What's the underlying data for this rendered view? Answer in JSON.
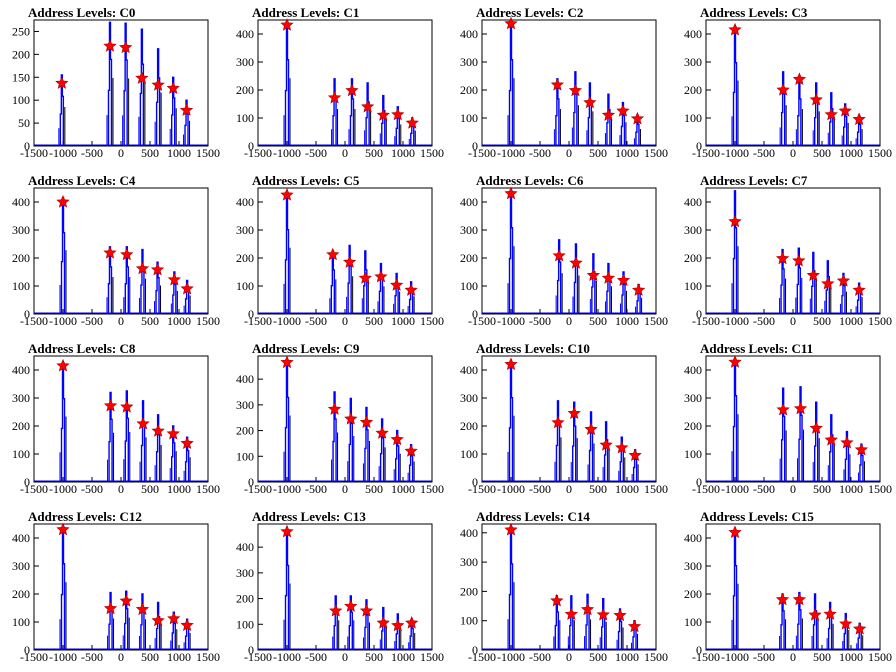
{
  "chart_data": [
    {
      "type": "histogram",
      "title": "Address Levels: C0",
      "ylim": [
        0,
        275
      ],
      "yticks": [
        0,
        50,
        100,
        150,
        200,
        250
      ],
      "xticks": [
        -1500,
        -1000,
        -500,
        0,
        500,
        1000,
        1500
      ],
      "peaks": [
        {
          "x": -1020,
          "y": 137,
          "h": 155
        },
        {
          "x": -190,
          "y": 218,
          "h": 270
        },
        {
          "x": 80,
          "y": 215,
          "h": 268
        },
        {
          "x": 360,
          "y": 148,
          "h": 255
        },
        {
          "x": 640,
          "y": 133,
          "h": 212
        },
        {
          "x": 900,
          "y": 126,
          "h": 150
        },
        {
          "x": 1130,
          "y": 78,
          "h": 100
        }
      ]
    },
    {
      "type": "histogram",
      "title": "Address Levels: C1",
      "ylim": [
        0,
        450
      ],
      "yticks": [
        0,
        100,
        200,
        300,
        400
      ],
      "xticks": [
        -1500,
        -1000,
        -500,
        0,
        500,
        1000,
        1500
      ],
      "peaks": [
        {
          "x": -1000,
          "y": 432,
          "h": 440
        },
        {
          "x": -180,
          "y": 172,
          "h": 240
        },
        {
          "x": 120,
          "y": 198,
          "h": 240
        },
        {
          "x": 390,
          "y": 140,
          "h": 225
        },
        {
          "x": 660,
          "y": 110,
          "h": 180
        },
        {
          "x": 910,
          "y": 112,
          "h": 140
        },
        {
          "x": 1160,
          "y": 82,
          "h": 100
        }
      ]
    },
    {
      "type": "histogram",
      "title": "Address Levels: C2",
      "ylim": [
        0,
        450
      ],
      "yticks": [
        0,
        100,
        200,
        300,
        400
      ],
      "xticks": [
        -1500,
        -1000,
        -500,
        0,
        500,
        1000,
        1500
      ],
      "peaks": [
        {
          "x": -1000,
          "y": 437,
          "h": 440
        },
        {
          "x": -200,
          "y": 218,
          "h": 240
        },
        {
          "x": 110,
          "y": 198,
          "h": 265
        },
        {
          "x": 360,
          "y": 155,
          "h": 225
        },
        {
          "x": 680,
          "y": 110,
          "h": 185
        },
        {
          "x": 930,
          "y": 125,
          "h": 155
        },
        {
          "x": 1180,
          "y": 97,
          "h": 110
        }
      ]
    },
    {
      "type": "histogram",
      "title": "Address Levels: C3",
      "ylim": [
        0,
        450
      ],
      "yticks": [
        0,
        100,
        200,
        300,
        400
      ],
      "xticks": [
        -1500,
        -1000,
        -500,
        0,
        500,
        1000,
        1500
      ],
      "peaks": [
        {
          "x": -1000,
          "y": 415,
          "h": 425
        },
        {
          "x": -170,
          "y": 200,
          "h": 265
        },
        {
          "x": 110,
          "y": 238,
          "h": 240
        },
        {
          "x": 400,
          "y": 165,
          "h": 225
        },
        {
          "x": 660,
          "y": 112,
          "h": 190
        },
        {
          "x": 900,
          "y": 125,
          "h": 150
        },
        {
          "x": 1140,
          "y": 95,
          "h": 110
        }
      ]
    },
    {
      "type": "histogram",
      "title": "Address Levels: C4",
      "ylim": [
        0,
        450
      ],
      "yticks": [
        0,
        100,
        200,
        300,
        400
      ],
      "xticks": [
        -1500,
        -1000,
        -500,
        0,
        500,
        1000,
        1500
      ],
      "peaks": [
        {
          "x": -1000,
          "y": 400,
          "h": 415
        },
        {
          "x": -190,
          "y": 218,
          "h": 240
        },
        {
          "x": 100,
          "y": 212,
          "h": 240
        },
        {
          "x": 370,
          "y": 162,
          "h": 230
        },
        {
          "x": 630,
          "y": 158,
          "h": 185
        },
        {
          "x": 920,
          "y": 122,
          "h": 150
        },
        {
          "x": 1140,
          "y": 90,
          "h": 120
        }
      ]
    },
    {
      "type": "histogram",
      "title": "Address Levels: C5",
      "ylim": [
        0,
        450
      ],
      "yticks": [
        0,
        100,
        200,
        300,
        400
      ],
      "xticks": [
        -1500,
        -1000,
        -500,
        0,
        500,
        1000,
        1500
      ],
      "peaks": [
        {
          "x": -1000,
          "y": 425,
          "h": 430
        },
        {
          "x": -210,
          "y": 212,
          "h": 225
        },
        {
          "x": 80,
          "y": 185,
          "h": 245
        },
        {
          "x": 350,
          "y": 128,
          "h": 225
        },
        {
          "x": 620,
          "y": 133,
          "h": 180
        },
        {
          "x": 890,
          "y": 103,
          "h": 145
        },
        {
          "x": 1140,
          "y": 85,
          "h": 115
        }
      ]
    },
    {
      "type": "histogram",
      "title": "Address Levels: C6",
      "ylim": [
        0,
        450
      ],
      "yticks": [
        0,
        100,
        200,
        300,
        400
      ],
      "xticks": [
        -1500,
        -1000,
        -500,
        0,
        500,
        1000,
        1500
      ],
      "peaks": [
        {
          "x": -1000,
          "y": 430,
          "h": 440
        },
        {
          "x": -170,
          "y": 208,
          "h": 265
        },
        {
          "x": 120,
          "y": 182,
          "h": 250
        },
        {
          "x": 420,
          "y": 138,
          "h": 215
        },
        {
          "x": 680,
          "y": 128,
          "h": 180
        },
        {
          "x": 940,
          "y": 120,
          "h": 150
        },
        {
          "x": 1200,
          "y": 85,
          "h": 105
        }
      ]
    },
    {
      "type": "histogram",
      "title": "Address Levels: C7",
      "ylim": [
        0,
        450
      ],
      "yticks": [
        0,
        100,
        200,
        300,
        400
      ],
      "xticks": [
        -1500,
        -1000,
        -500,
        0,
        500,
        1000,
        1500
      ],
      "peaks": [
        {
          "x": -1000,
          "y": 330,
          "h": 440
        },
        {
          "x": -180,
          "y": 198,
          "h": 230
        },
        {
          "x": 100,
          "y": 190,
          "h": 235
        },
        {
          "x": 350,
          "y": 138,
          "h": 220
        },
        {
          "x": 600,
          "y": 108,
          "h": 190
        },
        {
          "x": 870,
          "y": 118,
          "h": 145
        },
        {
          "x": 1140,
          "y": 85,
          "h": 110
        }
      ]
    },
    {
      "type": "histogram",
      "title": "Address Levels: C8",
      "ylim": [
        0,
        450
      ],
      "yticks": [
        0,
        100,
        200,
        300,
        400
      ],
      "xticks": [
        -1500,
        -1000,
        -500,
        0,
        500,
        1000,
        1500
      ],
      "peaks": [
        {
          "x": -1000,
          "y": 415,
          "h": 425
        },
        {
          "x": -180,
          "y": 272,
          "h": 320
        },
        {
          "x": 100,
          "y": 268,
          "h": 325
        },
        {
          "x": 380,
          "y": 208,
          "h": 290
        },
        {
          "x": 640,
          "y": 182,
          "h": 240
        },
        {
          "x": 900,
          "y": 172,
          "h": 200
        },
        {
          "x": 1140,
          "y": 138,
          "h": 160
        }
      ]
    },
    {
      "type": "histogram",
      "title": "Address Levels: C9",
      "ylim": [
        0,
        490
      ],
      "yticks": [
        0,
        100,
        200,
        300,
        400
      ],
      "xticks": [
        -1500,
        -1000,
        -500,
        0,
        500,
        1000,
        1500
      ],
      "peaks": [
        {
          "x": -1000,
          "y": 465,
          "h": 470
        },
        {
          "x": -180,
          "y": 283,
          "h": 350
        },
        {
          "x": 100,
          "y": 245,
          "h": 325
        },
        {
          "x": 370,
          "y": 232,
          "h": 290
        },
        {
          "x": 640,
          "y": 190,
          "h": 245
        },
        {
          "x": 900,
          "y": 165,
          "h": 200
        },
        {
          "x": 1140,
          "y": 120,
          "h": 145
        }
      ]
    },
    {
      "type": "histogram",
      "title": "Address Levels: C10",
      "ylim": [
        0,
        450
      ],
      "yticks": [
        0,
        100,
        200,
        300,
        400
      ],
      "xticks": [
        -1500,
        -1000,
        -500,
        0,
        500,
        1000,
        1500
      ],
      "peaks": [
        {
          "x": -1000,
          "y": 420,
          "h": 430
        },
        {
          "x": -190,
          "y": 212,
          "h": 290
        },
        {
          "x": 90,
          "y": 245,
          "h": 285
        },
        {
          "x": 380,
          "y": 188,
          "h": 250
        },
        {
          "x": 640,
          "y": 132,
          "h": 215
        },
        {
          "x": 910,
          "y": 122,
          "h": 160
        },
        {
          "x": 1140,
          "y": 95,
          "h": 115
        }
      ]
    },
    {
      "type": "histogram",
      "title": "Address Levels: C11",
      "ylim": [
        0,
        450
      ],
      "yticks": [
        0,
        100,
        200,
        300,
        400
      ],
      "xticks": [
        -1500,
        -1000,
        -500,
        0,
        500,
        1000,
        1500
      ],
      "peaks": [
        {
          "x": -1000,
          "y": 428,
          "h": 440
        },
        {
          "x": -170,
          "y": 258,
          "h": 335
        },
        {
          "x": 130,
          "y": 262,
          "h": 340
        },
        {
          "x": 400,
          "y": 192,
          "h": 285
        },
        {
          "x": 660,
          "y": 150,
          "h": 240
        },
        {
          "x": 930,
          "y": 140,
          "h": 180
        },
        {
          "x": 1180,
          "y": 115,
          "h": 135
        }
      ]
    },
    {
      "type": "histogram",
      "title": "Address Levels: C12",
      "ylim": [
        0,
        450
      ],
      "yticks": [
        0,
        100,
        200,
        300,
        400
      ],
      "xticks": [
        -1500,
        -1000,
        -500,
        0,
        500,
        1000,
        1500
      ],
      "peaks": [
        {
          "x": -1000,
          "y": 430,
          "h": 440
        },
        {
          "x": -180,
          "y": 148,
          "h": 205
        },
        {
          "x": 90,
          "y": 175,
          "h": 210
        },
        {
          "x": 370,
          "y": 145,
          "h": 200
        },
        {
          "x": 640,
          "y": 105,
          "h": 170
        },
        {
          "x": 910,
          "y": 112,
          "h": 135
        },
        {
          "x": 1140,
          "y": 88,
          "h": 110
        }
      ]
    },
    {
      "type": "histogram",
      "title": "Address Levels: C13",
      "ylim": [
        0,
        490
      ],
      "yticks": [
        0,
        100,
        200,
        300,
        400
      ],
      "xticks": [
        -1500,
        -1000,
        -500,
        0,
        500,
        1000,
        1500
      ],
      "peaks": [
        {
          "x": -1000,
          "y": 460,
          "h": 470
        },
        {
          "x": -160,
          "y": 152,
          "h": 210
        },
        {
          "x": 100,
          "y": 170,
          "h": 210
        },
        {
          "x": 370,
          "y": 152,
          "h": 195
        },
        {
          "x": 660,
          "y": 105,
          "h": 165
        },
        {
          "x": 910,
          "y": 95,
          "h": 140
        },
        {
          "x": 1150,
          "y": 105,
          "h": 120
        }
      ]
    },
    {
      "type": "histogram",
      "title": "Address Levels: C14",
      "ylim": [
        0,
        430
      ],
      "yticks": [
        0,
        100,
        200,
        300,
        400
      ],
      "xticks": [
        -1500,
        -1000,
        -500,
        0,
        500,
        1000,
        1500
      ],
      "peaks": [
        {
          "x": -1000,
          "y": 410,
          "h": 420
        },
        {
          "x": -210,
          "y": 168,
          "h": 185
        },
        {
          "x": 40,
          "y": 122,
          "h": 185
        },
        {
          "x": 320,
          "y": 138,
          "h": 190
        },
        {
          "x": 590,
          "y": 120,
          "h": 175
        },
        {
          "x": 880,
          "y": 118,
          "h": 140
        },
        {
          "x": 1130,
          "y": 80,
          "h": 100
        }
      ]
    },
    {
      "type": "histogram",
      "title": "Address Levels: C15",
      "ylim": [
        0,
        450
      ],
      "yticks": [
        0,
        100,
        200,
        300,
        400
      ],
      "xticks": [
        -1500,
        -1000,
        -500,
        0,
        500,
        1000,
        1500
      ],
      "peaks": [
        {
          "x": -1000,
          "y": 420,
          "h": 430
        },
        {
          "x": -180,
          "y": 180,
          "h": 200
        },
        {
          "x": 110,
          "y": 180,
          "h": 205
        },
        {
          "x": 380,
          "y": 125,
          "h": 200
        },
        {
          "x": 640,
          "y": 128,
          "h": 170
        },
        {
          "x": 910,
          "y": 93,
          "h": 130
        },
        {
          "x": 1150,
          "y": 75,
          "h": 95
        }
      ]
    }
  ],
  "colors": {
    "histogram": "#0000ff",
    "outline": "#000000",
    "marker": "#ff0000",
    "marker_stroke": "#aa0000",
    "background": "#ffffff"
  }
}
